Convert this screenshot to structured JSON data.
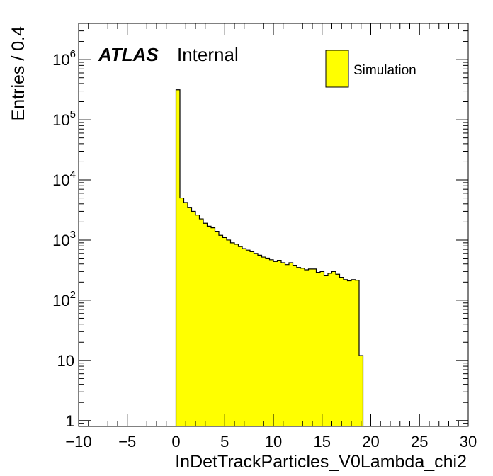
{
  "chart_data": {
    "type": "bar",
    "xlabel": "InDetTrackParticles_V0Lambda_chi2",
    "ylabel": "Entries / 0.4",
    "xlim": [
      -10,
      30
    ],
    "ylim": [
      0.8,
      4000000
    ],
    "yscale": "log",
    "bin_width": 0.4,
    "x_ticks": [
      -10,
      -5,
      0,
      5,
      10,
      15,
      20,
      25,
      30
    ],
    "x_tick_labels": [
      "−10",
      "−5",
      "0",
      "5",
      "10",
      "15",
      "20",
      "25",
      "30"
    ],
    "y_ticks": [
      1,
      10,
      100,
      1000,
      10000,
      100000,
      1000000
    ],
    "y_tick_labels": [
      {
        "base": "1",
        "exp": ""
      },
      {
        "base": "10",
        "exp": ""
      },
      {
        "base": "10",
        "exp": "2"
      },
      {
        "base": "10",
        "exp": "3"
      },
      {
        "base": "10",
        "exp": "4"
      },
      {
        "base": "10",
        "exp": "5"
      },
      {
        "base": "10",
        "exp": "6"
      }
    ],
    "fill_color": "#ffff00",
    "line_color": "#000000",
    "legend_position": "top-right",
    "series": [
      {
        "name": "Simulation",
        "bin_edges_start": 0,
        "values": [
          315000,
          5000,
          4200,
          3500,
          3000,
          2600,
          2250,
          1900,
          1700,
          1600,
          1400,
          1200,
          1100,
          1000,
          900,
          850,
          780,
          720,
          680,
          640,
          600,
          560,
          520,
          500,
          470,
          440,
          460,
          420,
          390,
          420,
          380,
          350,
          340,
          320,
          330,
          330,
          290,
          300,
          260,
          280,
          300,
          270,
          240,
          220,
          210,
          220,
          215,
          12
        ]
      }
    ]
  },
  "labels": {
    "atlas": "ATLAS",
    "internal": "Internal",
    "legend_entry": "Simulation"
  }
}
